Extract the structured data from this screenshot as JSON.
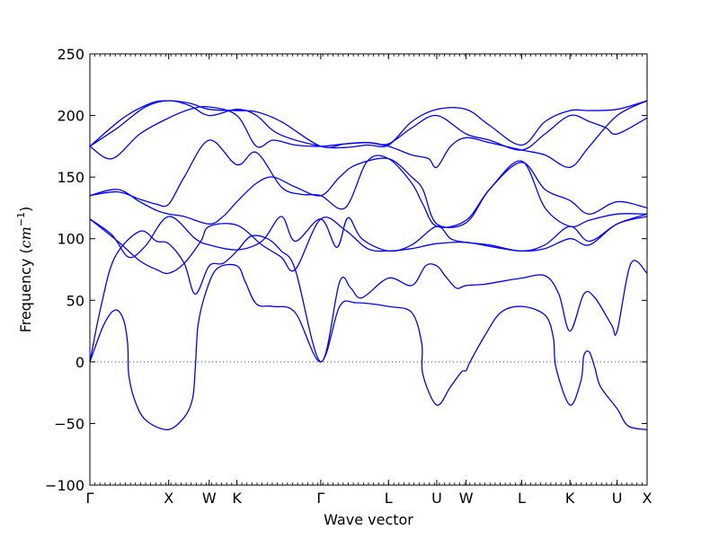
{
  "chart_data": {
    "type": "line",
    "xlabel": "Wave vector",
    "ylabel": {
      "prefix": "Frequency (",
      "unit_base": "cm",
      "unit_exp": "−1",
      "suffix": ")"
    },
    "ylim": [
      -100,
      250
    ],
    "yticks": [
      -100,
      -50,
      0,
      50,
      100,
      150,
      200,
      250
    ],
    "zero_line": "dotted",
    "grid": false,
    "line_color": "#0000ff",
    "zero_line_color": "#3f3fbf",
    "xlim": [
      0,
      10.04
    ],
    "x_ticks": [
      {
        "label": "Γ",
        "x": 0.0
      },
      {
        "label": "X",
        "x": 1.42
      },
      {
        "label": "W",
        "x": 2.15
      },
      {
        "label": "K",
        "x": 2.65
      },
      {
        "label": "Γ",
        "x": 4.16
      },
      {
        "label": "L",
        "x": 5.38
      },
      {
        "label": "U",
        "x": 6.25
      },
      {
        "label": "W",
        "x": 6.78
      },
      {
        "label": "L",
        "x": 7.78
      },
      {
        "label": "K",
        "x": 8.65
      },
      {
        "label": "U",
        "x": 9.5
      },
      {
        "label": "X",
        "x": 10.04
      }
    ],
    "series": [
      {
        "values": [
          [
            0,
            0
          ],
          [
            0.25,
            30
          ],
          [
            0.45,
            42
          ],
          [
            0.6,
            35
          ],
          [
            0.68,
            15
          ],
          [
            0.7,
            -10
          ],
          [
            0.8,
            -30
          ],
          [
            1.0,
            -47
          ],
          [
            1.4,
            -55
          ],
          [
            1.7,
            -45
          ],
          [
            1.85,
            -30
          ],
          [
            1.9,
            -5
          ],
          [
            1.95,
            30
          ],
          [
            2.1,
            58
          ],
          [
            2.3,
            76
          ],
          [
            2.65,
            78
          ],
          [
            2.8,
            65
          ],
          [
            3.0,
            47
          ],
          [
            3.3,
            45
          ],
          [
            3.7,
            40
          ],
          [
            4.16,
            0
          ],
          [
            4.5,
            45
          ],
          [
            4.8,
            48
          ],
          [
            5.38,
            45
          ],
          [
            5.8,
            40
          ],
          [
            5.98,
            15
          ],
          [
            6.0,
            -10
          ],
          [
            6.25,
            -35
          ],
          [
            6.5,
            -20
          ],
          [
            6.7,
            -8
          ],
          [
            6.78,
            -7
          ],
          [
            6.85,
            0
          ],
          [
            7.1,
            20
          ],
          [
            7.4,
            40
          ],
          [
            7.78,
            45
          ],
          [
            8.2,
            38
          ],
          [
            8.35,
            20
          ],
          [
            8.4,
            -5
          ],
          [
            8.65,
            -35
          ],
          [
            8.85,
            -15
          ],
          [
            8.9,
            5
          ],
          [
            9.0,
            8
          ],
          [
            9.1,
            -5
          ],
          [
            9.2,
            -20
          ],
          [
            9.5,
            -38
          ],
          [
            9.7,
            -52
          ],
          [
            10.04,
            -55
          ]
        ]
      },
      {
        "values": [
          [
            0,
            0
          ],
          [
            0.2,
            45
          ],
          [
            0.45,
            85
          ],
          [
            0.9,
            106
          ],
          [
            1.2,
            98
          ],
          [
            1.42,
            96
          ],
          [
            1.7,
            80
          ],
          [
            1.9,
            55
          ],
          [
            2.15,
            78
          ],
          [
            2.4,
            80
          ],
          [
            2.65,
            90
          ],
          [
            2.9,
            102
          ],
          [
            3.2,
            100
          ],
          [
            3.45,
            90
          ],
          [
            3.7,
            75
          ],
          [
            4.16,
            0
          ],
          [
            4.5,
            65
          ],
          [
            4.7,
            60
          ],
          [
            4.9,
            52
          ],
          [
            5.38,
            68
          ],
          [
            5.8,
            62
          ],
          [
            6.05,
            78
          ],
          [
            6.25,
            78
          ],
          [
            6.4,
            70
          ],
          [
            6.6,
            60
          ],
          [
            6.78,
            62
          ],
          [
            7.1,
            63
          ],
          [
            7.5,
            66
          ],
          [
            7.78,
            68
          ],
          [
            8.2,
            70
          ],
          [
            8.45,
            55
          ],
          [
            8.65,
            25
          ],
          [
            8.9,
            55
          ],
          [
            9.1,
            52
          ],
          [
            9.4,
            30
          ],
          [
            9.5,
            25
          ],
          [
            9.75,
            80
          ],
          [
            10.04,
            72
          ]
        ]
      },
      {
        "values": [
          [
            0,
            116
          ],
          [
            0.4,
            103
          ],
          [
            0.7,
            85
          ],
          [
            1.0,
            94
          ],
          [
            1.42,
            118
          ],
          [
            1.9,
            100
          ],
          [
            2.15,
            95
          ],
          [
            2.65,
            91
          ],
          [
            3.1,
            98
          ],
          [
            3.45,
            118
          ],
          [
            3.7,
            98
          ],
          [
            4.16,
            116
          ],
          [
            4.45,
            93
          ],
          [
            4.65,
            117
          ],
          [
            4.9,
            100
          ],
          [
            5.38,
            90
          ],
          [
            5.8,
            95
          ],
          [
            6.25,
            110
          ],
          [
            6.5,
            100
          ],
          [
            6.78,
            97
          ],
          [
            7.2,
            95
          ],
          [
            7.78,
            90
          ],
          [
            8.2,
            95
          ],
          [
            8.65,
            110
          ],
          [
            9.0,
            98
          ],
          [
            9.5,
            112
          ],
          [
            10.04,
            120
          ]
        ]
      },
      {
        "values": [
          [
            0,
            116
          ],
          [
            0.5,
            98
          ],
          [
            0.9,
            82
          ],
          [
            1.2,
            75
          ],
          [
            1.42,
            72
          ],
          [
            1.7,
            80
          ],
          [
            2.0,
            98
          ],
          [
            2.15,
            110
          ],
          [
            2.65,
            111
          ],
          [
            3.1,
            95
          ],
          [
            3.45,
            85
          ],
          [
            3.7,
            75
          ],
          [
            4.16,
            116
          ],
          [
            4.6,
            107
          ],
          [
            5.0,
            92
          ],
          [
            5.38,
            90
          ],
          [
            5.8,
            92
          ],
          [
            6.25,
            96
          ],
          [
            6.78,
            97
          ],
          [
            7.3,
            93
          ],
          [
            7.78,
            90
          ],
          [
            8.2,
            92
          ],
          [
            8.65,
            100
          ],
          [
            9.0,
            95
          ],
          [
            9.5,
            112
          ],
          [
            10.04,
            118
          ]
        ]
      },
      {
        "values": [
          [
            0,
            135
          ],
          [
            0.5,
            140
          ],
          [
            0.9,
            130
          ],
          [
            1.2,
            123
          ],
          [
            1.42,
            120
          ],
          [
            1.7,
            118
          ],
          [
            2.15,
            112
          ],
          [
            2.4,
            118
          ],
          [
            2.65,
            130
          ],
          [
            3.0,
            145
          ],
          [
            3.3,
            150
          ],
          [
            3.7,
            142
          ],
          [
            4.16,
            135
          ],
          [
            4.5,
            150
          ],
          [
            4.8,
            160
          ],
          [
            5.38,
            165
          ],
          [
            5.8,
            150
          ],
          [
            6.0,
            140
          ],
          [
            6.25,
            112
          ],
          [
            6.78,
            113
          ],
          [
            7.2,
            140
          ],
          [
            7.78,
            162
          ],
          [
            8.2,
            140
          ],
          [
            8.65,
            131
          ],
          [
            9.0,
            120
          ],
          [
            9.5,
            130
          ],
          [
            10.04,
            125
          ]
        ]
      },
      {
        "values": [
          [
            0,
            135
          ],
          [
            0.5,
            138
          ],
          [
            0.9,
            132
          ],
          [
            1.2,
            128
          ],
          [
            1.42,
            128
          ],
          [
            1.7,
            150
          ],
          [
            2.15,
            180
          ],
          [
            2.65,
            160
          ],
          [
            3.0,
            170
          ],
          [
            3.45,
            142
          ],
          [
            3.8,
            136
          ],
          [
            4.16,
            135
          ],
          [
            4.6,
            125
          ],
          [
            5.0,
            163
          ],
          [
            5.38,
            165
          ],
          [
            5.8,
            145
          ],
          [
            6.0,
            128
          ],
          [
            6.25,
            110
          ],
          [
            6.78,
            115
          ],
          [
            7.2,
            140
          ],
          [
            7.78,
            163
          ],
          [
            8.2,
            125
          ],
          [
            8.65,
            110
          ],
          [
            9.0,
            115
          ],
          [
            9.5,
            120
          ],
          [
            10.04,
            120
          ]
        ]
      },
      {
        "values": [
          [
            0,
            175
          ],
          [
            0.4,
            165
          ],
          [
            0.9,
            185
          ],
          [
            1.42,
            198
          ],
          [
            1.8,
            205
          ],
          [
            2.15,
            207
          ],
          [
            2.65,
            200
          ],
          [
            3.0,
            175
          ],
          [
            3.3,
            180
          ],
          [
            3.7,
            176
          ],
          [
            4.16,
            175
          ],
          [
            4.6,
            177
          ],
          [
            5.0,
            178
          ],
          [
            5.38,
            177
          ],
          [
            5.8,
            190
          ],
          [
            6.25,
            200
          ],
          [
            6.78,
            185
          ],
          [
            7.2,
            180
          ],
          [
            7.78,
            172
          ],
          [
            8.2,
            185
          ],
          [
            8.65,
            200
          ],
          [
            9.0,
            195
          ],
          [
            9.3,
            190
          ],
          [
            9.5,
            185
          ],
          [
            10.04,
            198
          ]
        ]
      },
      {
        "values": [
          [
            0,
            175
          ],
          [
            0.5,
            190
          ],
          [
            1.0,
            207
          ],
          [
            1.42,
            212
          ],
          [
            1.8,
            208
          ],
          [
            2.15,
            200
          ],
          [
            2.65,
            205
          ],
          [
            3.0,
            200
          ],
          [
            3.4,
            185
          ],
          [
            4.16,
            175
          ],
          [
            4.6,
            174
          ],
          [
            5.0,
            176
          ],
          [
            5.38,
            176
          ],
          [
            5.8,
            195
          ],
          [
            6.25,
            205
          ],
          [
            6.78,
            205
          ],
          [
            7.2,
            192
          ],
          [
            7.78,
            176
          ],
          [
            8.2,
            195
          ],
          [
            8.65,
            204
          ],
          [
            9.0,
            204
          ],
          [
            9.5,
            205
          ],
          [
            10.04,
            212
          ]
        ]
      },
      {
        "values": [
          [
            0,
            175
          ],
          [
            0.6,
            198
          ],
          [
            1.1,
            210
          ],
          [
            1.42,
            212
          ],
          [
            1.8,
            210
          ],
          [
            2.15,
            205
          ],
          [
            2.65,
            204
          ],
          [
            3.0,
            203
          ],
          [
            3.45,
            195
          ],
          [
            4.16,
            175
          ],
          [
            4.6,
            177
          ],
          [
            5.0,
            178
          ],
          [
            5.38,
            175
          ],
          [
            5.8,
            168
          ],
          [
            6.1,
            165
          ],
          [
            6.25,
            158
          ],
          [
            6.5,
            175
          ],
          [
            6.78,
            182
          ],
          [
            7.2,
            178
          ],
          [
            7.78,
            172
          ],
          [
            8.2,
            168
          ],
          [
            8.65,
            158
          ],
          [
            9.0,
            175
          ],
          [
            9.5,
            200
          ],
          [
            10.04,
            212
          ]
        ]
      }
    ]
  }
}
